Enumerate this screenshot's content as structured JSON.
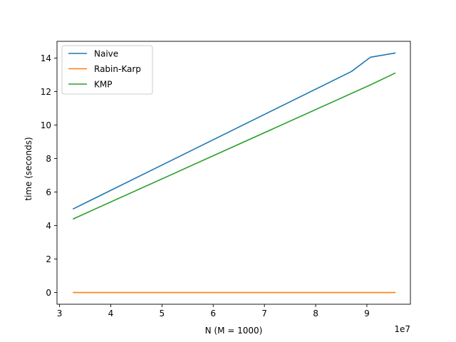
{
  "chart_data": {
    "type": "line",
    "title": "",
    "xlabel": "N (M = 1000)",
    "ylabel": "time (seconds)",
    "x_offset_label": "1e7",
    "xlim": [
      2.95,
      9.85
    ],
    "ylim": [
      -0.7,
      15.0
    ],
    "x_ticks": [
      3,
      4,
      5,
      6,
      7,
      8,
      9
    ],
    "y_ticks": [
      0,
      2,
      4,
      6,
      8,
      10,
      12,
      14
    ],
    "grid": false,
    "legend_position": "top-left",
    "series": [
      {
        "name": "Naive",
        "color": "#1f77b4",
        "x": [
          3.27,
          8.7,
          9.07,
          9.55
        ],
        "y": [
          5.0,
          13.2,
          14.05,
          14.3
        ]
      },
      {
        "name": "Rabin-Karp",
        "color": "#ff7f0e",
        "x": [
          3.27,
          9.55
        ],
        "y": [
          0.0,
          0.0
        ]
      },
      {
        "name": "KMP",
        "color": "#2ca02c",
        "x": [
          3.27,
          9.07,
          9.55
        ],
        "y": [
          4.4,
          12.4,
          13.1
        ]
      }
    ]
  }
}
